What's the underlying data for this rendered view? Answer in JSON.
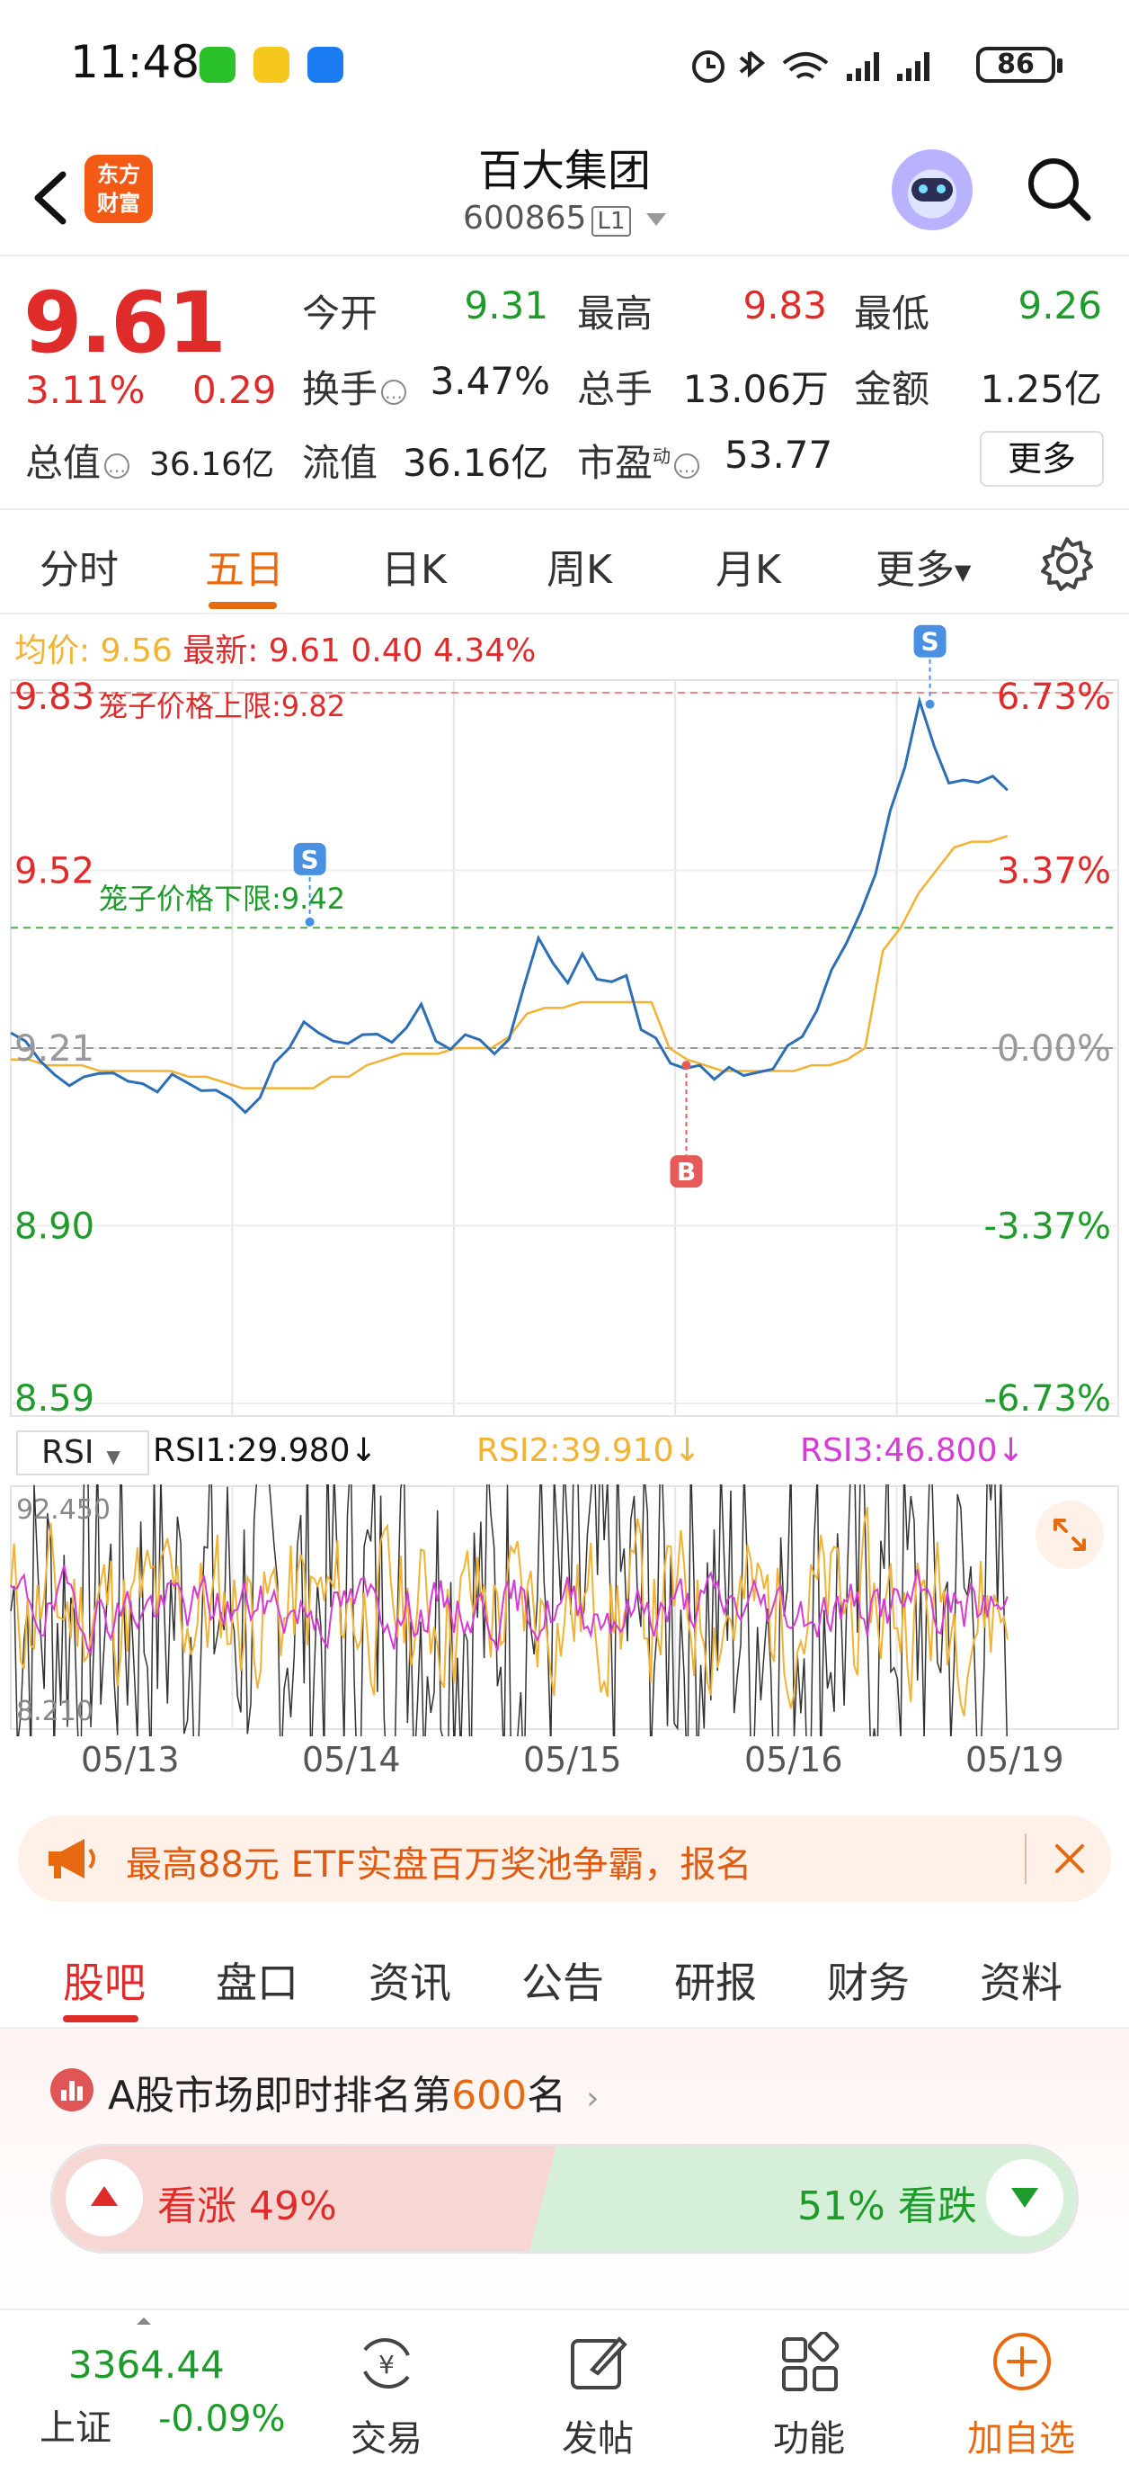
{
  "status_bar": {
    "time": "11:48",
    "battery": "86"
  },
  "header": {
    "brand_logo_line1": "东方",
    "brand_logo_line2": "财富",
    "stock_name": "百大集团",
    "stock_code": "600865",
    "level": "L1"
  },
  "quote": {
    "last_price": "9.61",
    "pct_change": "3.11%",
    "abs_change": "0.29",
    "open_label": "今开",
    "open_value": "9.31",
    "high_label": "最高",
    "high_value": "9.83",
    "low_label": "最低",
    "low_value": "9.26",
    "turnover_label": "换手",
    "turnover_value": "3.47%",
    "volume_label": "总手",
    "volume_value": "13.06万",
    "amount_label": "金额",
    "amount_value": "1.25亿",
    "total_cap_label": "总值",
    "total_cap_value": "36.16亿",
    "float_cap_label": "流值",
    "float_cap_value": "36.16亿",
    "pe_label": "市盈",
    "pe_superscript": "动",
    "pe_value": "53.77",
    "more_label": "更多"
  },
  "chart_tabs": [
    "分时",
    "五日",
    "日K",
    "周K",
    "月K",
    "更多"
  ],
  "chart_info": {
    "avg_label": "均价:",
    "avg_value": "9.56",
    "latest_label": "最新:",
    "latest_value": "9.61",
    "latest_change": "0.40",
    "latest_pct": "4.34%"
  },
  "chart_data": {
    "type": "line",
    "x_ticks": [
      "05/13",
      "05/14",
      "05/15",
      "05/16",
      "05/19"
    ],
    "y_left_ticks": [
      "9.83",
      "9.52",
      "9.21",
      "8.90",
      "8.59"
    ],
    "y_right_ticks": [
      "6.73%",
      "3.37%",
      "0.00%",
      "-3.37%",
      "-6.73%"
    ],
    "ylim": [
      8.59,
      9.83
    ],
    "baseline": 9.21,
    "upper_limit_label": "笼子价格上限:",
    "upper_limit_value": "9.82",
    "lower_limit_label": "笼子价格下限:",
    "lower_limit_value": "9.42",
    "lower_limit": 9.42,
    "series": [
      {
        "name": "最新",
        "color": "#2d6fb6",
        "values": [
          9.23,
          9.22,
          9.19,
          9.17,
          9.14,
          9.16,
          9.17,
          9.16,
          9.15,
          9.15,
          9.14,
          9.16,
          9.15,
          9.14,
          9.13,
          9.12,
          9.1,
          9.13,
          9.18,
          9.21,
          9.26,
          9.23,
          9.22,
          9.22,
          9.24,
          9.23,
          9.22,
          9.25,
          9.28,
          9.22,
          9.21,
          9.24,
          9.22,
          9.2,
          9.23,
          9.31,
          9.4,
          9.36,
          9.33,
          9.37,
          9.33,
          9.33,
          9.33,
          9.24,
          9.23,
          9.19,
          9.17,
          9.18,
          9.16,
          9.17,
          9.16,
          9.17,
          9.18,
          9.21,
          9.23,
          9.28,
          9.34,
          9.39,
          9.45,
          9.52,
          9.62,
          9.7,
          9.82,
          9.73,
          9.67,
          9.68,
          9.68,
          9.68,
          9.66
        ]
      },
      {
        "name": "均价",
        "color": "#f2b233",
        "values": [
          9.19,
          9.19,
          9.18,
          9.18,
          9.18,
          9.17,
          9.17,
          9.17,
          9.17,
          9.17,
          9.16,
          9.16,
          9.15,
          9.14,
          9.14,
          9.14,
          9.14,
          9.14,
          9.16,
          9.16,
          9.18,
          9.19,
          9.2,
          9.2,
          9.2,
          9.21,
          9.21,
          9.21,
          9.23,
          9.27,
          9.28,
          9.28,
          9.29,
          9.29,
          9.29,
          9.29,
          9.29,
          9.21,
          9.19,
          9.18,
          9.17,
          9.17,
          9.17,
          9.17,
          9.17,
          9.18,
          9.18,
          9.19,
          9.21,
          9.38,
          9.42,
          9.48,
          9.52,
          9.56,
          9.57,
          9.57,
          9.58
        ]
      }
    ],
    "markers": [
      {
        "label": "S",
        "value": 9.43,
        "type": "sell"
      },
      {
        "label": "B",
        "value": 9.18,
        "type": "buy"
      },
      {
        "label": "S",
        "value": 9.81,
        "type": "sell"
      }
    ]
  },
  "rsi": {
    "select_label": "RSI",
    "rsi1_text": "RSI1:29.980↓",
    "rsi2_text": "RSI2:39.910↓",
    "rsi3_text": "RSI3:46.800↓",
    "y_max": "92.450",
    "y_min": "8.210"
  },
  "banner": {
    "text": "最高88元 ETF实盘百万奖池争霸，报名"
  },
  "section_tabs": [
    "股吧",
    "盘口",
    "资讯",
    "公告",
    "研报",
    "财务",
    "资料"
  ],
  "rank": {
    "prefix": "A股市场即时排名第",
    "number": "600",
    "suffix": "名"
  },
  "sentiment": {
    "up_label": "看涨 49%",
    "down_label": "51% 看跌",
    "up_pct": 49
  },
  "bottom_nav": {
    "index_value": "3364.44",
    "index_name": "上证",
    "index_change": "-0.09%",
    "items": [
      "交易",
      "发帖",
      "功能",
      "加自选"
    ]
  },
  "colors": {
    "accent": "#e86a10",
    "up": "#e02b2b",
    "down": "#1e9b2a",
    "price_line": "#2d6fb6",
    "avg_line": "#f2b233",
    "rsi3": "#d63bd6"
  }
}
